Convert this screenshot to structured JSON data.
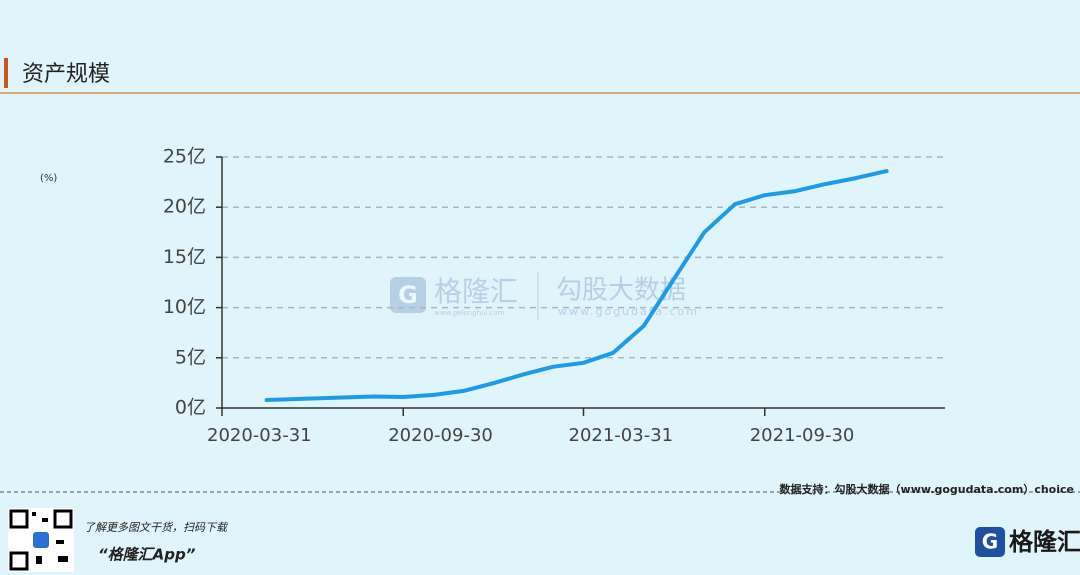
{
  "chart_data": {
    "type": "line",
    "title": "资产规模",
    "ylabel": "(%)",
    "x": [
      "2020-05-15",
      "2020-06-30",
      "2020-07-31",
      "2020-08-31",
      "2020-09-30",
      "2020-10-31",
      "2020-11-30",
      "2020-12-31",
      "2021-01-31",
      "2021-02-28",
      "2021-03-31",
      "2021-04-30",
      "2021-05-31",
      "2021-06-30",
      "2021-07-31",
      "2021-08-31",
      "2021-09-30",
      "2021-10-31",
      "2021-11-30",
      "2021-12-31",
      "2022-01-31"
    ],
    "series": [
      {
        "color": "#1e9be8",
        "values": [
          0.8,
          0.95,
          1.05,
          1.15,
          1.1,
          1.3,
          1.7,
          2.5,
          3.4,
          4.1,
          4.5,
          5.5,
          8.2,
          12.8,
          17.5,
          20.3,
          21.2,
          21.6,
          22.3,
          22.9,
          23.6
        ]
      }
    ],
    "xlim": [
      "2020-03-31",
      "2022-03-31"
    ],
    "xticks": [
      "2020-03-31",
      "2020-09-30",
      "2021-03-31",
      "2021-09-30"
    ],
    "ylim": [
      0,
      25
    ],
    "yticks": [
      {
        "value": 0,
        "label": "0亿"
      },
      {
        "value": 5,
        "label": "5亿"
      },
      {
        "value": 10,
        "label": "10亿"
      },
      {
        "value": 15,
        "label": "15亿"
      },
      {
        "value": 20,
        "label": "20亿"
      },
      {
        "value": 25,
        "label": "25亿"
      }
    ],
    "grid": true
  },
  "watermark": {
    "brand": "格隆汇",
    "brand_url": "www.gelonghui.com",
    "partner": "勾股大数据",
    "partner_url": "www.gogudata.com"
  },
  "footer": {
    "source": "数据支持：勾股大数据（www.gogudata.com）choice",
    "promo": "了解更多图文干货，扫码下载",
    "app": "“格隆汇App”",
    "logo": "格隆汇"
  }
}
